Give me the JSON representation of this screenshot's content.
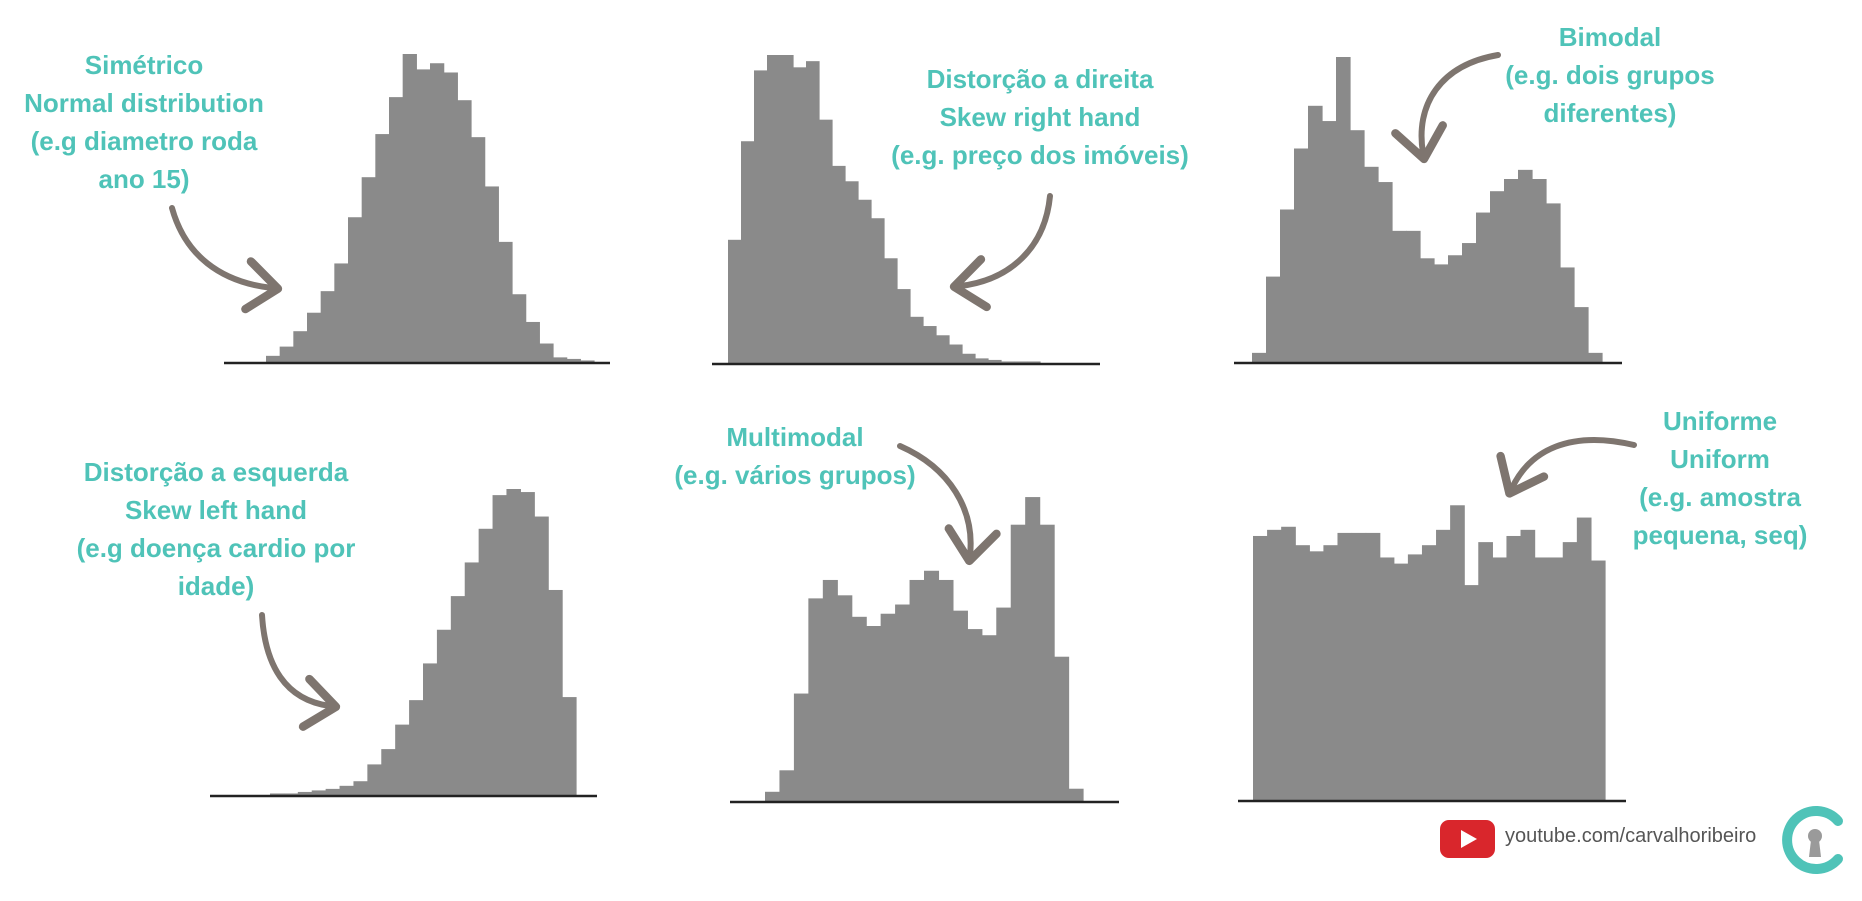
{
  "colors": {
    "bars": "#8a8a8a",
    "axis": "#222222",
    "label": "#4fc3b8",
    "arrow": "#7e756f",
    "youtube": "#d9262c"
  },
  "labels": {
    "normal": [
      "Simétrico",
      "Normal distribution",
      "(e.g diametro roda",
      "ano 15)"
    ],
    "skew_right": [
      "Distorção a direita",
      "Skew right hand",
      "(e.g. preço dos imóveis)"
    ],
    "bimodal": [
      "Bimodal",
      "(e.g. dois grupos",
      "diferentes)"
    ],
    "skew_left": [
      "Distorção a esquerda",
      "Skew left hand",
      "(e.g doença cardio por",
      "idade)"
    ],
    "multimodal": [
      "Multimodal",
      "(e.g. vários grupos)"
    ],
    "uniform": [
      "Uniforme",
      "Uniform",
      "(e.g. amostra",
      "pequena, seq)"
    ]
  },
  "footer": {
    "url": "youtube.com/carvalhoribeiro",
    "youtube_icon": "youtube-play-icon",
    "brand_icon": "carvalhoribeiro-logo-icon"
  },
  "chart_data": [
    {
      "type": "bar",
      "id": "normal",
      "xlabel": "",
      "ylabel": "",
      "values": [
        0.2,
        0.5,
        1.0,
        1.6,
        2.3,
        3.2,
        4.7,
        6.0,
        7.4,
        8.6,
        10.0,
        9.5,
        9.7,
        9.4,
        8.5,
        7.3,
        5.7,
        3.9,
        2.2,
        1.3,
        0.6,
        0.15,
        0.1,
        0.05
      ]
    },
    {
      "type": "bar",
      "id": "skew_right",
      "xlabel": "",
      "ylabel": "",
      "values": [
        4.0,
        7.2,
        9.5,
        10.0,
        10.0,
        9.6,
        9.8,
        7.9,
        6.4,
        5.9,
        5.3,
        4.7,
        3.4,
        2.4,
        1.5,
        1.2,
        0.9,
        0.6,
        0.3,
        0.15,
        0.1,
        0.05,
        0.05,
        0.05
      ]
    },
    {
      "type": "bar",
      "id": "bimodal",
      "xlabel": "",
      "ylabel": "",
      "values": [
        0.3,
        2.8,
        5.0,
        7.0,
        8.4,
        7.9,
        10.0,
        7.6,
        6.4,
        5.9,
        4.3,
        4.3,
        3.4,
        3.2,
        3.5,
        3.9,
        4.9,
        5.6,
        6.0,
        6.3,
        6.0,
        5.2,
        3.1,
        1.8,
        0.3
      ]
    },
    {
      "type": "bar",
      "id": "skew_left",
      "xlabel": "",
      "ylabel": "",
      "values": [
        0.05,
        0.05,
        0.1,
        0.15,
        0.2,
        0.3,
        0.45,
        1.0,
        1.5,
        2.3,
        3.1,
        4.3,
        5.4,
        6.5,
        7.6,
        8.7,
        9.8,
        10.0,
        9.9,
        9.1,
        6.7,
        3.2
      ]
    },
    {
      "type": "bar",
      "id": "multimodal",
      "xlabel": "",
      "ylabel": "",
      "values": [
        0.3,
        1.0,
        3.5,
        6.6,
        7.2,
        6.7,
        6.0,
        5.7,
        6.1,
        6.4,
        7.2,
        7.5,
        7.2,
        6.2,
        5.6,
        5.4,
        6.3,
        9.0,
        9.9,
        9.0,
        4.7,
        0.4
      ]
    },
    {
      "type": "bar",
      "id": "uniform",
      "xlabel": "",
      "ylabel": "",
      "values": [
        8.6,
        8.8,
        8.9,
        8.3,
        8.1,
        8.3,
        8.7,
        8.7,
        8.7,
        7.9,
        7.7,
        8.0,
        8.3,
        8.8,
        9.6,
        7.0,
        8.4,
        7.9,
        8.6,
        8.8,
        7.9,
        7.9,
        8.4,
        9.2,
        7.8
      ]
    }
  ]
}
